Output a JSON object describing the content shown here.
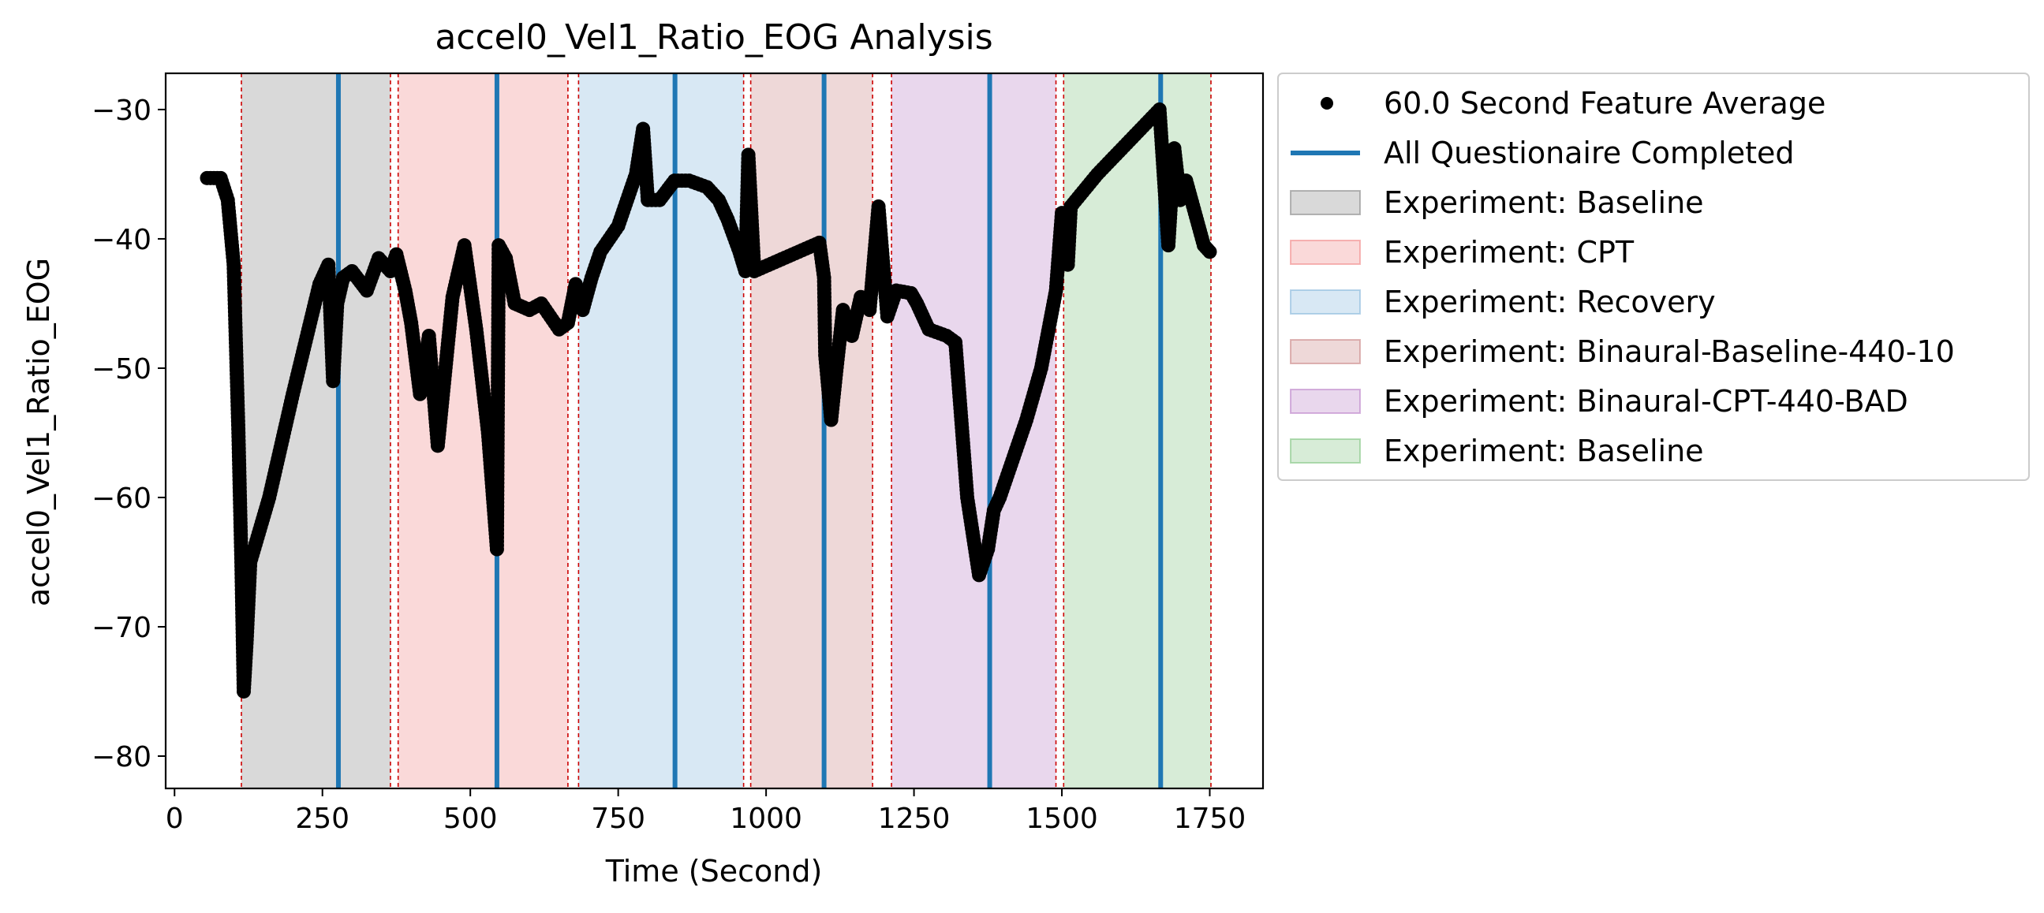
{
  "chart_data": {
    "type": "scatter",
    "title": "accel0_Vel1_Ratio_EOG Analysis",
    "xlabel": "Time (Second)",
    "ylabel": "accel0_Vel1_Ratio_EOG",
    "xlim": [
      -15,
      1840
    ],
    "ylim": [
      -82.5,
      -27.2
    ],
    "xticks": [
      0,
      250,
      500,
      750,
      1000,
      1250,
      1500,
      1750
    ],
    "xtick_labels": [
      "0",
      "250",
      "500",
      "750",
      "1000",
      "1250",
      "1500",
      "1750"
    ],
    "yticks": [
      -80,
      -70,
      -60,
      -50,
      -40,
      -30
    ],
    "ytick_labels": [
      "−80",
      "−70",
      "−60",
      "−50",
      "−40",
      "−30"
    ],
    "grid": false,
    "legend_position": "outside-right-top",
    "series": [
      {
        "name": "60.0 Second Feature Average",
        "kind": "scatter",
        "color": "#000000",
        "keypoints": [
          [
            55,
            -35.3
          ],
          [
            78,
            -35.3
          ],
          [
            90,
            -37
          ],
          [
            100,
            -42
          ],
          [
            108,
            -55
          ],
          [
            113,
            -65
          ],
          [
            117,
            -75
          ],
          [
            122,
            -71
          ],
          [
            128,
            -65
          ],
          [
            160,
            -60
          ],
          [
            200,
            -52
          ],
          [
            245,
            -43.5
          ],
          [
            260,
            -42
          ],
          [
            268,
            -51
          ],
          [
            275,
            -45
          ],
          [
            285,
            -43
          ],
          [
            300,
            -42.5
          ],
          [
            325,
            -44
          ],
          [
            345,
            -41.5
          ],
          [
            365,
            -42.5
          ],
          [
            375,
            -41.2
          ],
          [
            390,
            -44
          ],
          [
            400,
            -46.5
          ],
          [
            415,
            -52
          ],
          [
            430,
            -47.5
          ],
          [
            445,
            -56
          ],
          [
            470,
            -44.5
          ],
          [
            490,
            -40.5
          ],
          [
            510,
            -47
          ],
          [
            530,
            -55
          ],
          [
            545,
            -64
          ],
          [
            548,
            -40.5
          ],
          [
            560,
            -41.5
          ],
          [
            575,
            -45
          ],
          [
            600,
            -45.5
          ],
          [
            620,
            -45
          ],
          [
            650,
            -47
          ],
          [
            665,
            -46.5
          ],
          [
            678,
            -43.5
          ],
          [
            690,
            -45.5
          ],
          [
            705,
            -43
          ],
          [
            720,
            -41
          ],
          [
            750,
            -39
          ],
          [
            780,
            -35
          ],
          [
            792,
            -31.5
          ],
          [
            800,
            -37
          ],
          [
            820,
            -37
          ],
          [
            845,
            -35.5
          ],
          [
            870,
            -35.5
          ],
          [
            900,
            -36
          ],
          [
            920,
            -37
          ],
          [
            935,
            -38.5
          ],
          [
            955,
            -41
          ],
          [
            965,
            -42.5
          ],
          [
            970,
            -33.5
          ],
          [
            980,
            -42.5
          ],
          [
            1090,
            -40.3
          ],
          [
            1098,
            -43
          ],
          [
            1100,
            -49
          ],
          [
            1110,
            -54
          ],
          [
            1118,
            -50.5
          ],
          [
            1130,
            -45.5
          ],
          [
            1145,
            -47.5
          ],
          [
            1160,
            -44.5
          ],
          [
            1175,
            -45.5
          ],
          [
            1190,
            -37.5
          ],
          [
            1205,
            -46
          ],
          [
            1220,
            -44
          ],
          [
            1245,
            -44.2
          ],
          [
            1255,
            -45
          ],
          [
            1275,
            -47
          ],
          [
            1305,
            -47.5
          ],
          [
            1320,
            -48
          ],
          [
            1340,
            -60
          ],
          [
            1350,
            -63
          ],
          [
            1360,
            -66
          ],
          [
            1375,
            -64
          ],
          [
            1385,
            -61
          ],
          [
            1395,
            -60
          ],
          [
            1410,
            -58
          ],
          [
            1440,
            -54
          ],
          [
            1465,
            -50
          ],
          [
            1490,
            -44
          ],
          [
            1500,
            -38
          ],
          [
            1510,
            -42
          ],
          [
            1515,
            -37.5
          ],
          [
            1560,
            -35
          ],
          [
            1665,
            -30
          ],
          [
            1680,
            -40.5
          ],
          [
            1690,
            -33
          ],
          [
            1700,
            -37
          ],
          [
            1710,
            -35.5
          ],
          [
            1725,
            -38
          ],
          [
            1740,
            -40.5
          ],
          [
            1750,
            -41
          ]
        ]
      },
      {
        "name": "All Questionaire Completed",
        "kind": "vline",
        "color": "#1f77b4",
        "x": [
          277,
          545,
          846,
          1098,
          1378,
          1667
        ]
      }
    ],
    "spans": [
      {
        "name": "Experiment: Baseline",
        "color": "#808080",
        "x": [
          113,
          365
        ]
      },
      {
        "name": "Experiment: CPT",
        "color": "#f08080",
        "x": [
          378,
          665
        ]
      },
      {
        "name": "Experiment: Recovery",
        "color": "#7fb2d9",
        "x": [
          683,
          962
        ]
      },
      {
        "name": "Experiment: Binaural-Baseline-440-10",
        "color": "#c77d7d",
        "x": [
          974,
          1180
        ]
      },
      {
        "name": "Experiment: Binaural-CPT-440-BAD",
        "color": "#b679c4",
        "x": [
          1212,
          1490
        ]
      },
      {
        "name": "Experiment: Baseline",
        "color": "#79c179",
        "x": [
          1503,
          1752
        ]
      }
    ],
    "boundaries": {
      "color": "#cc0000",
      "x": [
        113,
        365,
        378,
        665,
        683,
        962,
        974,
        1180,
        1212,
        1490,
        1503,
        1752
      ]
    }
  }
}
